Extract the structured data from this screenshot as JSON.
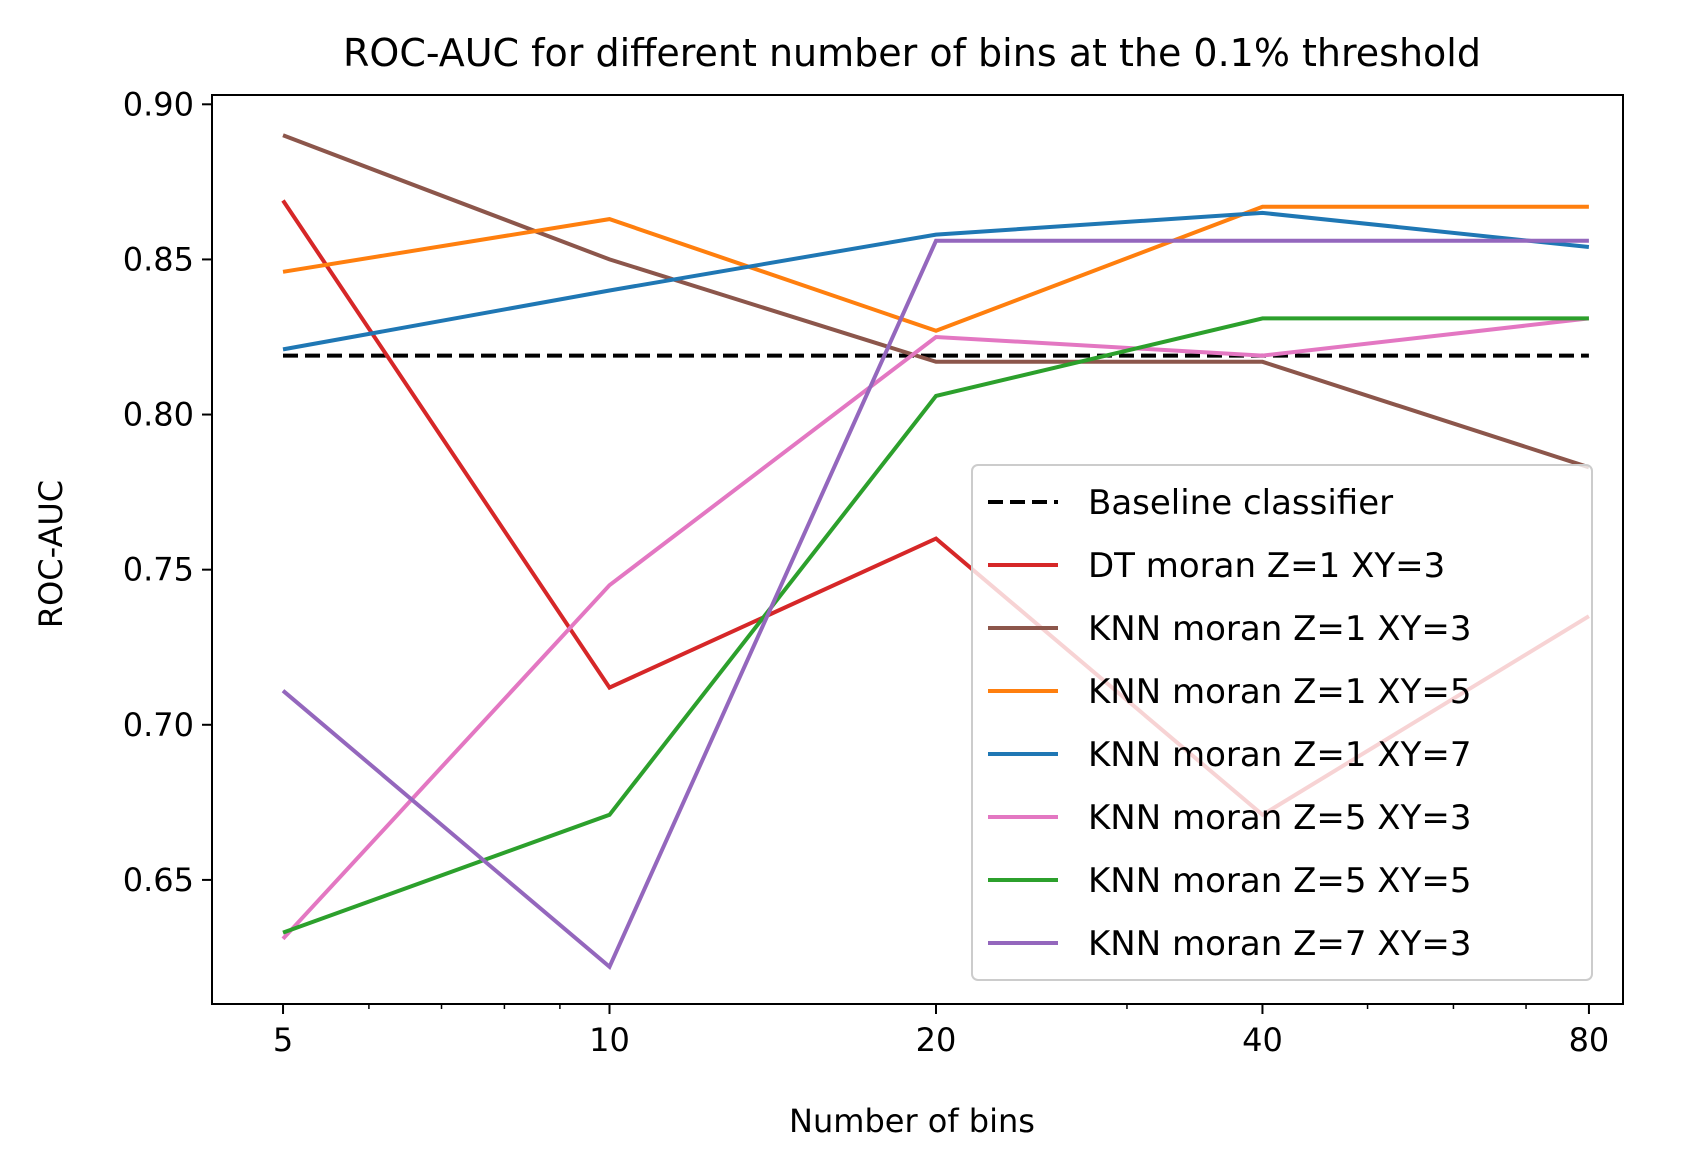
{
  "chart_data": {
    "type": "line",
    "title": "ROC-AUC for different number of bins at the 0.1% threshold",
    "xlabel": "Number of bins",
    "ylabel": "ROC-AUC",
    "x_scale": "log2",
    "x": [
      5,
      10,
      20,
      40,
      80
    ],
    "xticks": [
      "5",
      "10",
      "20",
      "40",
      "80"
    ],
    "xlim": [
      4.3,
      86
    ],
    "ylim": [
      0.61,
      0.903
    ],
    "yticks": [
      "0.65",
      "0.70",
      "0.75",
      "0.80",
      "0.85",
      "0.90"
    ],
    "grid": false,
    "legend_position": "lower-right",
    "series": [
      {
        "name": "Baseline classifier",
        "color": "#000000",
        "dash": true,
        "values": [
          0.819,
          0.819,
          0.819,
          0.819,
          0.819
        ]
      },
      {
        "name": "DT moran Z=1 XY=3",
        "color": "#d62728",
        "values": [
          0.869,
          0.712,
          0.76,
          0.671,
          0.735
        ]
      },
      {
        "name": "KNN moran Z=1 XY=3",
        "color": "#8c564b",
        "values": [
          0.89,
          0.85,
          0.817,
          0.817,
          0.783
        ]
      },
      {
        "name": "KNN moran Z=1 XY=5",
        "color": "#ff7f0e",
        "values": [
          0.846,
          0.863,
          0.827,
          0.867,
          0.867
        ]
      },
      {
        "name": "KNN moran Z=1 XY=7",
        "color": "#1f77b4",
        "values": [
          0.821,
          0.84,
          0.858,
          0.865,
          0.854
        ]
      },
      {
        "name": "KNN moran Z=5 XY=3",
        "color": "#e377c2",
        "values": [
          0.631,
          0.745,
          0.825,
          0.819,
          0.831
        ]
      },
      {
        "name": "KNN moran Z=5 XY=5",
        "color": "#2ca02c",
        "values": [
          0.633,
          0.671,
          0.806,
          0.831,
          0.831
        ]
      },
      {
        "name": "KNN moran Z=7 XY=3",
        "color": "#9467bd",
        "values": [
          0.711,
          0.622,
          0.856,
          0.856,
          0.856
        ]
      }
    ]
  }
}
